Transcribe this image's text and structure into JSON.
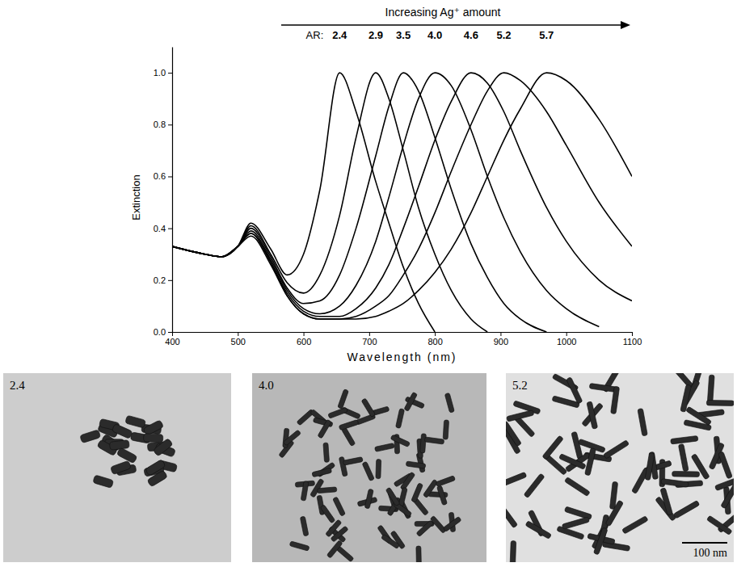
{
  "chart_data": {
    "type": "line",
    "annotations": [
      "Increasing Ag⁺ amount",
      "AR:"
    ],
    "x_label": "Wavelength (nm)",
    "y_label": "Extinction",
    "x": [
      400,
      450,
      475,
      500,
      520,
      550,
      575,
      600,
      625,
      655,
      680,
      710,
      730,
      752,
      775,
      800,
      825,
      855,
      880,
      905,
      930,
      970,
      1000,
      1050,
      1100
    ],
    "series": [
      {
        "name": "2.4",
        "color": "#000000",
        "values": [
          0.33,
          0.3,
          0.29,
          0.33,
          0.42,
          0.32,
          0.22,
          0.3,
          0.55,
          1.0,
          0.85,
          0.58,
          0.42,
          0.25,
          0.11,
          0.0,
          null,
          null,
          null,
          null,
          null,
          null,
          null,
          null,
          null
        ]
      },
      {
        "name": "2.9",
        "color": "#000000",
        "values": [
          0.33,
          0.3,
          0.29,
          0.33,
          0.41,
          0.3,
          0.19,
          0.15,
          0.22,
          0.45,
          0.75,
          1.0,
          0.9,
          0.7,
          0.48,
          0.3,
          0.16,
          0.05,
          0.0,
          null,
          null,
          null,
          null,
          null,
          null
        ]
      },
      {
        "name": "3.5",
        "color": "#000000",
        "values": [
          0.33,
          0.3,
          0.29,
          0.33,
          0.4,
          0.29,
          0.17,
          0.11,
          0.12,
          0.22,
          0.4,
          0.68,
          0.87,
          1.0,
          0.93,
          0.75,
          0.55,
          0.34,
          0.21,
          0.11,
          0.05,
          0.0,
          null,
          null,
          null
        ]
      },
      {
        "name": "4.0",
        "color": "#000000",
        "values": [
          0.33,
          0.3,
          0.29,
          0.33,
          0.39,
          0.28,
          0.16,
          0.09,
          0.07,
          0.1,
          0.18,
          0.35,
          0.52,
          0.72,
          0.9,
          1.0,
          0.95,
          0.78,
          0.6,
          0.44,
          0.31,
          0.16,
          0.09,
          0.02,
          null
        ]
      },
      {
        "name": "4.6",
        "color": "#000000",
        "values": [
          0.33,
          0.3,
          0.29,
          0.33,
          0.38,
          0.27,
          0.15,
          0.08,
          0.06,
          0.06,
          0.09,
          0.17,
          0.26,
          0.4,
          0.56,
          0.74,
          0.89,
          1.0,
          0.96,
          0.85,
          0.7,
          0.48,
          0.35,
          0.2,
          0.12
        ]
      },
      {
        "name": "5.2",
        "color": "#000000",
        "values": [
          0.33,
          0.3,
          0.29,
          0.33,
          0.38,
          0.27,
          0.14,
          0.07,
          0.05,
          0.05,
          0.06,
          0.1,
          0.14,
          0.22,
          0.32,
          0.46,
          0.62,
          0.8,
          0.93,
          1.0,
          0.97,
          0.85,
          0.72,
          0.5,
          0.33
        ]
      },
      {
        "name": "5.7",
        "color": "#000000",
        "values": [
          0.33,
          0.3,
          0.29,
          0.33,
          0.37,
          0.26,
          0.14,
          0.07,
          0.05,
          0.05,
          0.05,
          0.06,
          0.08,
          0.11,
          0.16,
          0.23,
          0.32,
          0.46,
          0.6,
          0.74,
          0.86,
          1.0,
          0.97,
          0.82,
          0.6
        ]
      }
    ],
    "xlim": [
      400,
      1100
    ],
    "xticks": [
      400,
      500,
      600,
      700,
      800,
      900,
      1000,
      1100
    ],
    "ylim": [
      0,
      1.1
    ],
    "yticks": [
      {
        "value": 0,
        "label": "0.0"
      },
      {
        "value": 0.2,
        "label": "0.2"
      },
      {
        "value": 0.4,
        "label": "0.4"
      },
      {
        "value": 0.6,
        "label": "0.6"
      },
      {
        "value": 0.8,
        "label": "0.8"
      },
      {
        "value": 1.0,
        "label": "1.0"
      }
    ]
  },
  "panels": [
    {
      "label": "2.4"
    },
    {
      "label": "4.0"
    },
    {
      "label": "5.2"
    }
  ],
  "scale_bar": "100 nm"
}
